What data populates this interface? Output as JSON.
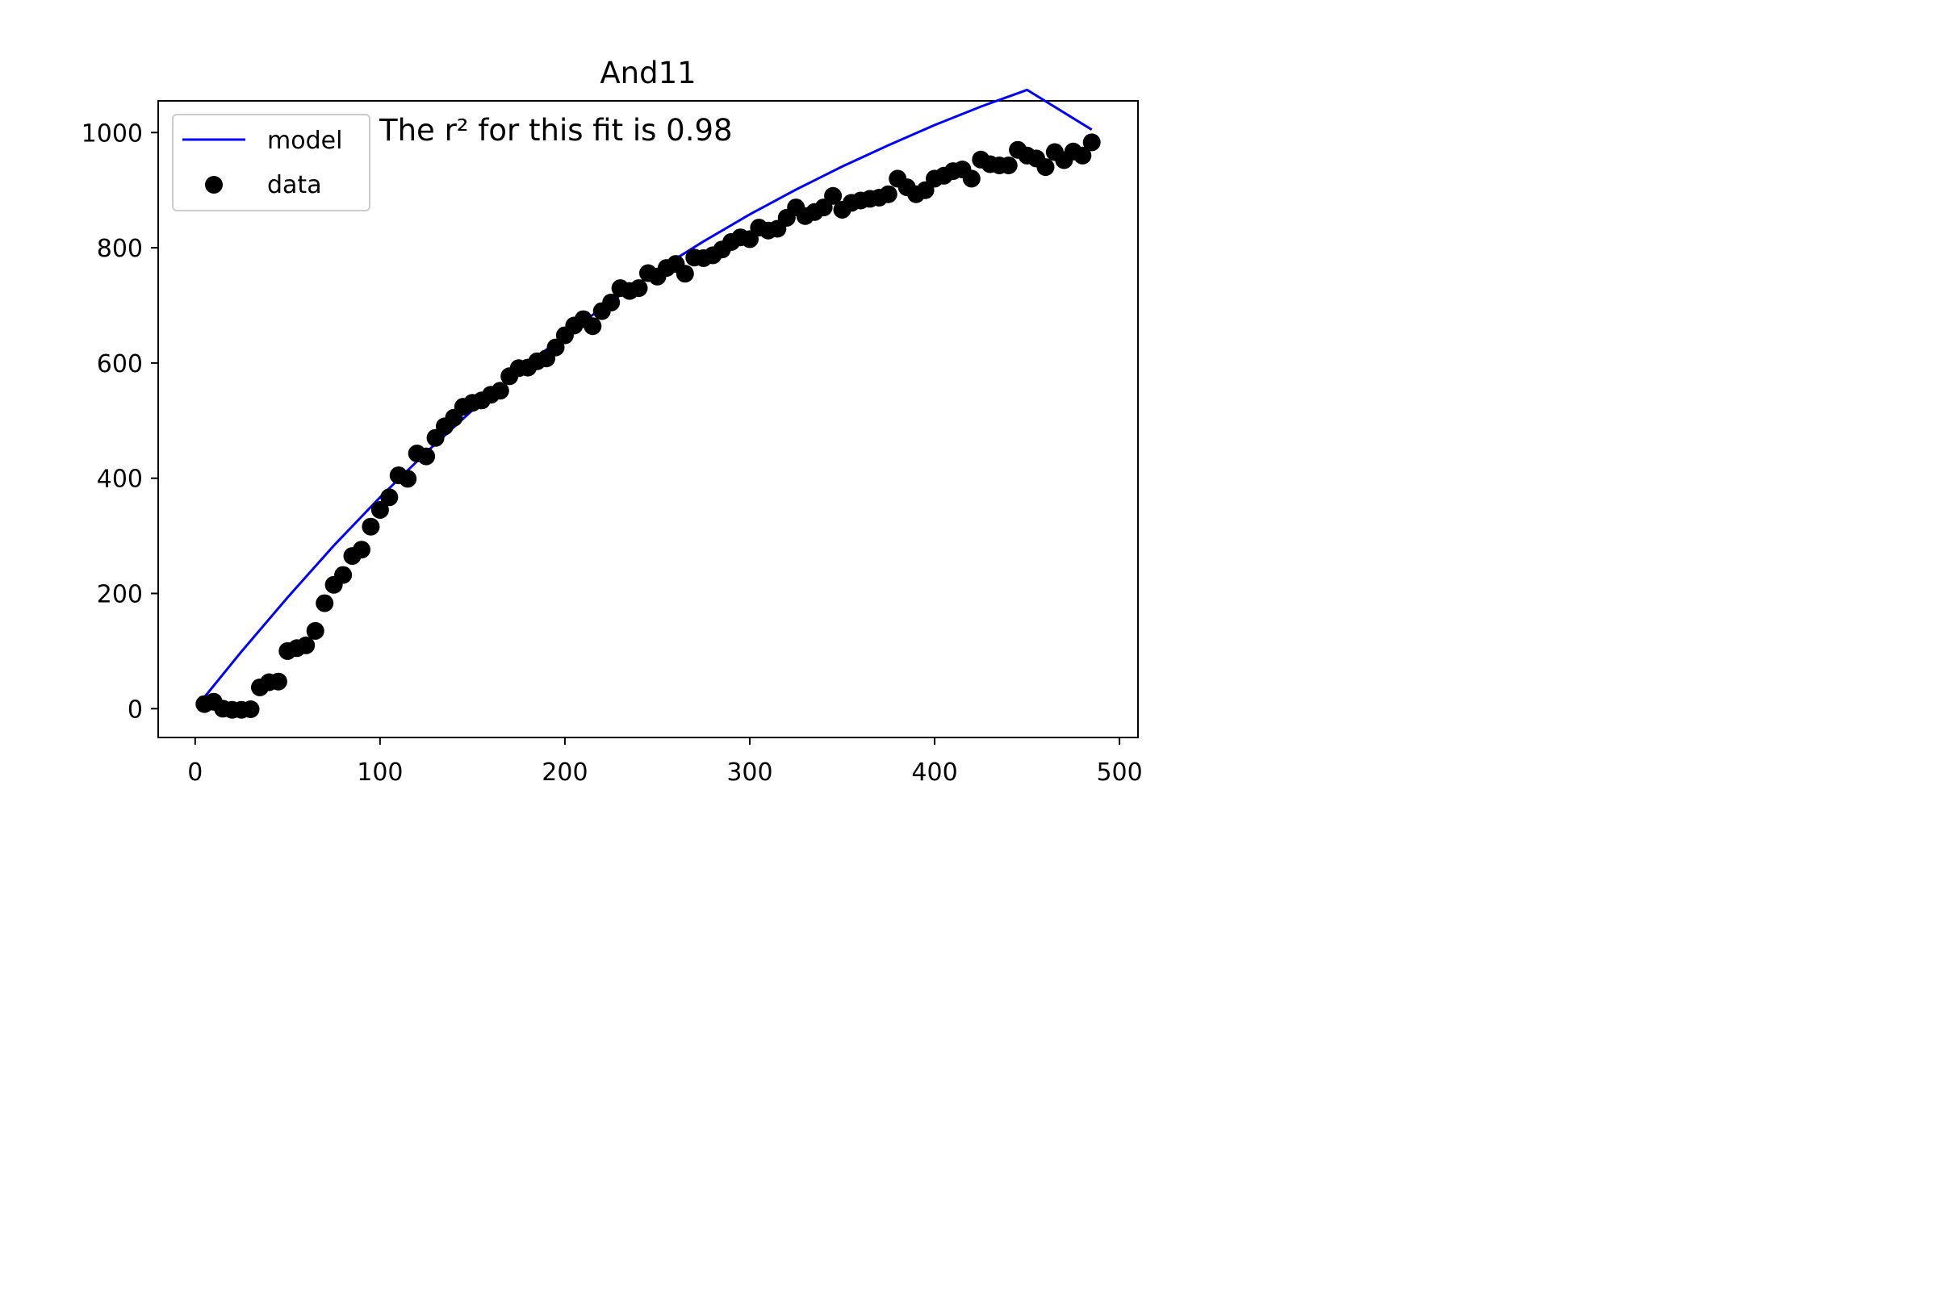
{
  "chart_data": {
    "type": "scatter",
    "title": "And11",
    "xlabel": "",
    "ylabel": "",
    "xlim": [
      -20,
      510
    ],
    "ylim": [
      -50,
      1055
    ],
    "xticks": [
      0,
      100,
      200,
      300,
      400,
      500
    ],
    "yticks": [
      0,
      200,
      400,
      600,
      800,
      1000
    ],
    "grid": false,
    "legend_position": "top-left",
    "annotation": "The r² for this fit is 0.98",
    "series": [
      {
        "name": "model",
        "kind": "line",
        "color": "#0000ff",
        "x": [
          5,
          25,
          50,
          75,
          100,
          125,
          150,
          175,
          200,
          225,
          250,
          275,
          300,
          325,
          350,
          375,
          400,
          425,
          450,
          485
        ],
        "y": [
          20,
          99,
          193,
          283,
          367,
          445,
          518,
          586,
          648,
          707,
          761,
          811,
          858,
          901,
          941,
          978,
          1013,
          1045,
          1074,
          1005
        ]
      },
      {
        "name": "data",
        "kind": "scatter",
        "color": "#000000",
        "x": [
          5,
          10,
          15,
          20,
          25,
          30,
          35,
          40,
          45,
          50,
          55,
          60,
          65,
          70,
          75,
          80,
          85,
          90,
          95,
          100,
          105,
          110,
          115,
          120,
          125,
          130,
          135,
          140,
          145,
          150,
          155,
          160,
          165,
          170,
          175,
          180,
          185,
          190,
          195,
          200,
          205,
          210,
          215,
          220,
          225,
          230,
          235,
          240,
          245,
          250,
          255,
          260,
          265,
          270,
          275,
          280,
          285,
          290,
          295,
          300,
          305,
          310,
          315,
          320,
          325,
          330,
          335,
          340,
          345,
          350,
          355,
          360,
          365,
          370,
          375,
          380,
          385,
          390,
          395,
          400,
          405,
          410,
          415,
          420,
          425,
          430,
          435,
          440,
          445,
          450,
          455,
          460,
          465,
          470,
          475,
          480,
          485
        ],
        "y": [
          8,
          12,
          0,
          -2,
          -2,
          -1,
          37,
          46,
          47,
          100,
          105,
          110,
          135,
          183,
          215,
          232,
          265,
          276,
          316,
          345,
          367,
          405,
          399,
          443,
          438,
          470,
          490,
          505,
          524,
          531,
          535,
          545,
          552,
          577,
          591,
          592,
          603,
          608,
          627,
          648,
          665,
          676,
          664,
          690,
          705,
          730,
          725,
          730,
          756,
          750,
          765,
          772,
          755,
          783,
          782,
          787,
          797,
          810,
          818,
          815,
          835,
          830,
          833,
          852,
          870,
          855,
          862,
          870,
          890,
          866,
          878,
          882,
          885,
          887,
          893,
          920,
          905,
          893,
          900,
          920,
          925,
          933,
          936,
          920,
          953,
          945,
          943,
          943,
          970,
          960,
          955,
          940,
          966,
          952,
          967,
          960,
          983
        ]
      }
    ]
  }
}
